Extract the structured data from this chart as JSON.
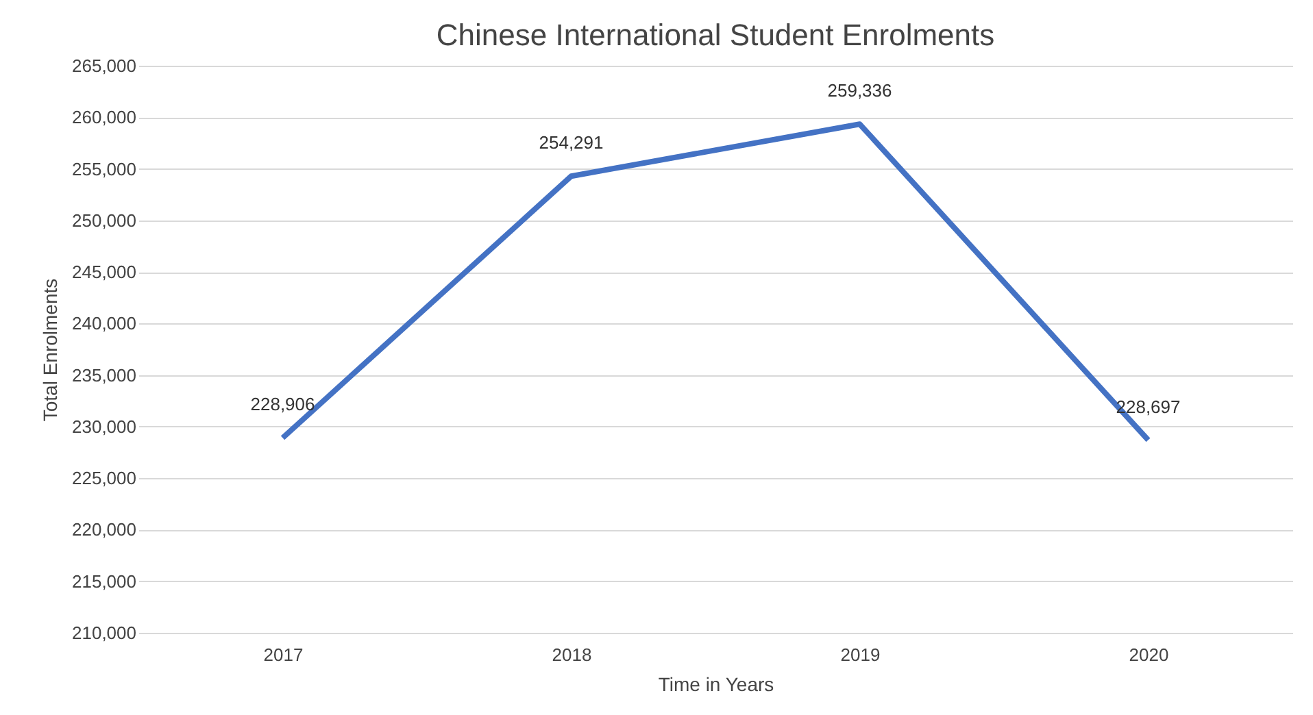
{
  "chart_data": {
    "type": "line",
    "title": "Chinese International Student Enrolments",
    "xlabel": "Time in Years",
    "ylabel": "Total Enrolments",
    "categories": [
      "2017",
      "2018",
      "2019",
      "2020"
    ],
    "series": [
      {
        "color": "#4472c4",
        "values": [
          228906,
          254291,
          259336,
          228697
        ],
        "value_labels": [
          "228,906",
          "254,291",
          "259,336",
          "228,697"
        ]
      }
    ],
    "ylim": [
      210000,
      265000
    ],
    "yticks": [
      {
        "value": 210000,
        "label": "210,000"
      },
      {
        "value": 215000,
        "label": "215,000"
      },
      {
        "value": 220000,
        "label": "220,000"
      },
      {
        "value": 225000,
        "label": "225,000"
      },
      {
        "value": 230000,
        "label": "230,000"
      },
      {
        "value": 235000,
        "label": "235,000"
      },
      {
        "value": 240000,
        "label": "240,000"
      },
      {
        "value": 245000,
        "label": "245,000"
      },
      {
        "value": 250000,
        "label": "250,000"
      },
      {
        "value": 255000,
        "label": "255,000"
      },
      {
        "value": 260000,
        "label": "260,000"
      },
      {
        "value": 265000,
        "label": "265,000"
      }
    ],
    "grid": "y",
    "marker": "none",
    "line_style": "solid",
    "legend": false
  }
}
